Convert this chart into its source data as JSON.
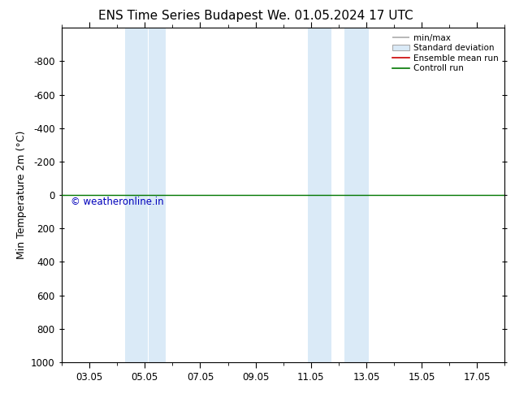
{
  "title": "ENS Time Series Budapest",
  "title2": "We. 01.05.2024 17 UTC",
  "ylabel": "Min Temperature 2m (°C)",
  "ylim_top": -1000,
  "ylim_bottom": 1000,
  "yticks": [
    -800,
    -600,
    -400,
    -200,
    0,
    200,
    400,
    600,
    800,
    1000
  ],
  "xtick_labels": [
    "03.05",
    "05.05",
    "07.05",
    "09.05",
    "11.05",
    "13.05",
    "15.05",
    "17.05"
  ],
  "xtick_positions": [
    3,
    5,
    7,
    9,
    11,
    13,
    15,
    17
  ],
  "xlim": [
    2.0,
    18.0
  ],
  "blue_bands": [
    [
      4.3,
      5.1
    ],
    [
      5.15,
      5.75
    ],
    [
      10.9,
      11.75
    ],
    [
      12.2,
      13.1
    ]
  ],
  "green_line_y": 0,
  "watermark": "© weatheronline.in",
  "legend_labels": [
    "min/max",
    "Standard deviation",
    "Ensemble mean run",
    "Controll run"
  ],
  "legend_colors": [
    "#aaaaaa",
    "#cccccc",
    "#cc0000",
    "#007700"
  ],
  "background_color": "#ffffff",
  "plot_bg_color": "#ffffff",
  "band_color": "#daeaf7",
  "band_edge_color": "#b0cce0"
}
